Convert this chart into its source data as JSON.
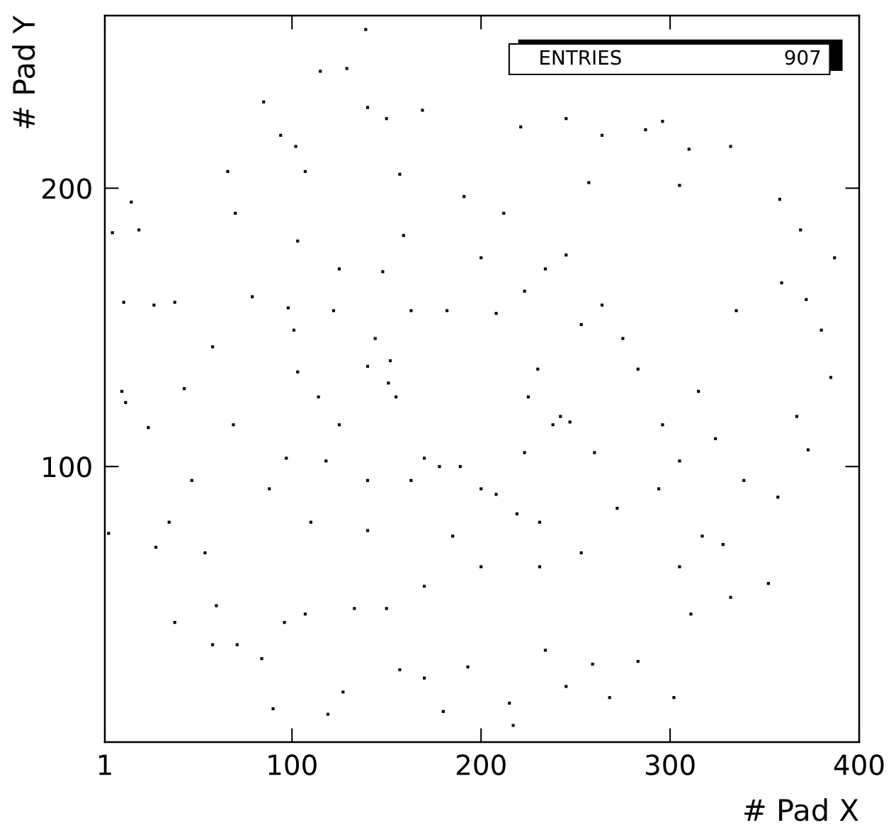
{
  "chart_data": {
    "type": "scatter",
    "xlabel": "# Pad X",
    "ylabel": "# Pad Y",
    "marker": "square",
    "grid": false,
    "xlim": [
      1,
      400
    ],
    "ylim": [
      1,
      262
    ],
    "xticks": [
      1,
      100,
      200,
      300,
      400
    ],
    "yticks": [
      100,
      200
    ],
    "annotations": [
      "ENTRIES",
      "907"
    ],
    "series": [
      {
        "color": "#000000",
        "x": [
          5,
          11,
          10,
          15,
          19,
          24,
          27,
          38,
          43,
          38,
          58,
          66,
          70,
          79,
          85,
          94,
          102,
          107,
          98,
          101,
          103,
          97,
          96,
          90,
          115,
          129,
          140,
          150,
          157,
          159,
          148,
          152,
          151,
          118,
          119,
          127,
          139,
          169,
          191,
          200,
          212,
          221,
          245,
          257,
          264,
          287,
          296,
          305,
          310,
          332,
          358,
          369,
          387,
          359,
          372,
          380,
          385,
          373,
          367,
          357,
          352,
          332,
          317,
          311,
          302,
          283,
          268,
          259,
          245,
          234,
          215,
          217,
          193,
          180,
          170,
          157,
          150,
          133,
          107,
          84,
          71,
          60,
          54,
          35,
          28,
          12,
          3,
          242,
          247,
          238,
          225,
          230,
          253,
          264,
          275,
          283,
          296,
          305,
          324,
          339,
          315,
          170,
          178,
          189,
          208,
          219,
          231,
          200,
          155,
          140,
          144,
          163,
          182,
          208,
          223,
          234,
          245,
          122,
          114,
          125,
          140,
          163,
          185,
          200,
          231,
          253,
          272,
          294,
          170,
          140,
          110,
          88,
          69,
          58,
          47,
          103,
          125,
          223,
          260,
          335,
          328,
          305
        ],
        "values": [
          184,
          159,
          127,
          195,
          185,
          114,
          158,
          159,
          128,
          44,
          36,
          206,
          191,
          161,
          231,
          219,
          215,
          206,
          157,
          149,
          134,
          103,
          44,
          13,
          242,
          243,
          229,
          225,
          205,
          183,
          170,
          138,
          130,
          102,
          11,
          19,
          257,
          228,
          197,
          175,
          191,
          222,
          225,
          202,
          219,
          221,
          224,
          201,
          214,
          215,
          196,
          185,
          175,
          166,
          160,
          149,
          132,
          106,
          118,
          89,
          58,
          53,
          75,
          47,
          17,
          30,
          17,
          29,
          21,
          34,
          15,
          7,
          28,
          12,
          24,
          27,
          49,
          49,
          47,
          31,
          36,
          50,
          69,
          80,
          71,
          123,
          76,
          118,
          116,
          115,
          125,
          135,
          151,
          158,
          146,
          135,
          115,
          102,
          110,
          95,
          127,
          103,
          100,
          100,
          90,
          83,
          80,
          92,
          125,
          136,
          146,
          156,
          156,
          155,
          163,
          171,
          176,
          156,
          125,
          115,
          95,
          95,
          75,
          64,
          64,
          69,
          85,
          92,
          57,
          77,
          80,
          92,
          115,
          143,
          95,
          181,
          171,
          105,
          105,
          156,
          72,
          64
        ]
      }
    ]
  }
}
